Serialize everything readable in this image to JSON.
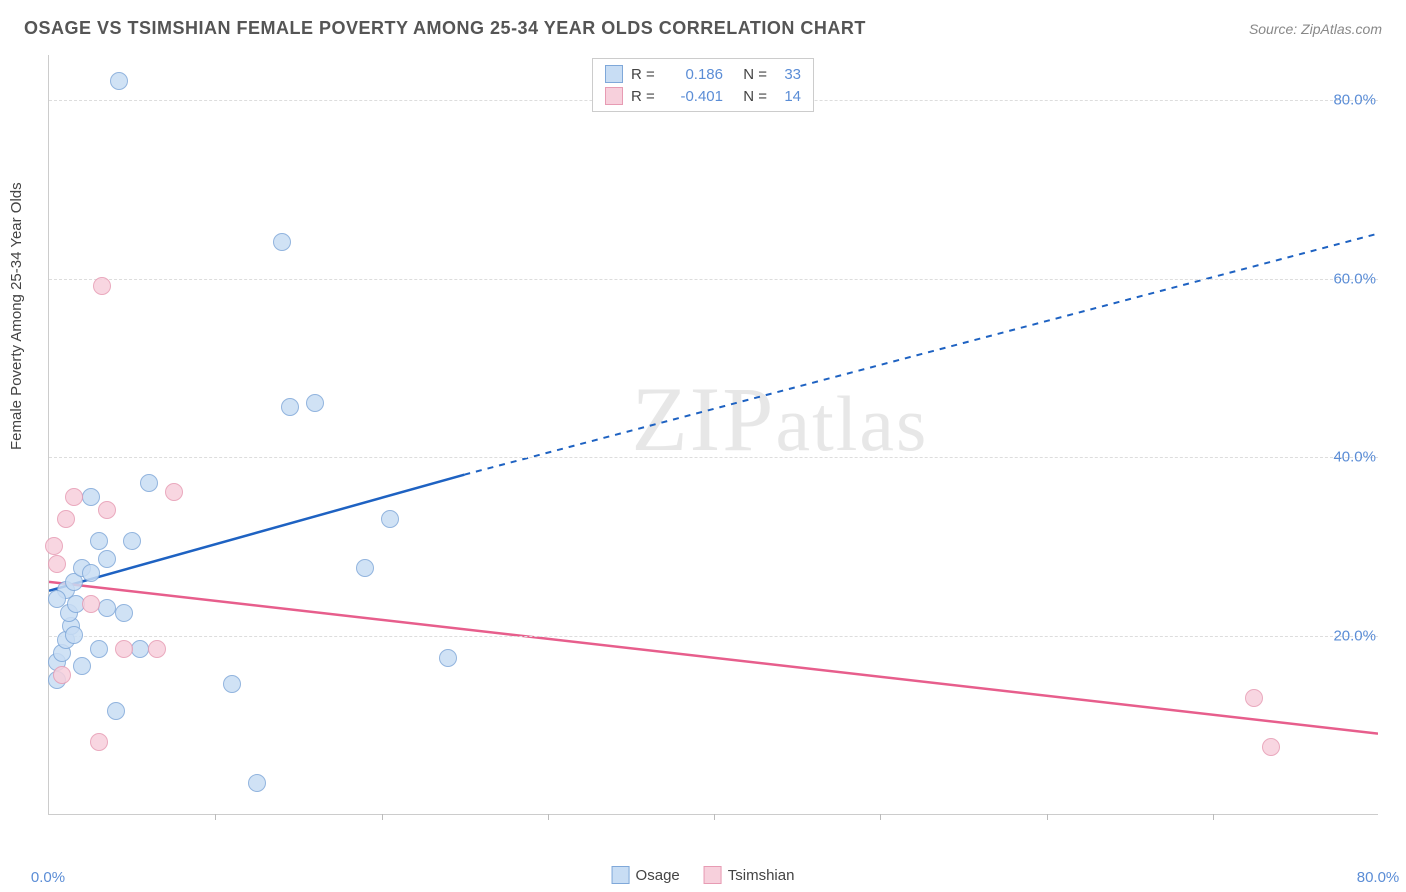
{
  "title": "OSAGE VS TSIMSHIAN FEMALE POVERTY AMONG 25-34 YEAR OLDS CORRELATION CHART",
  "source_label": "Source: ZipAtlas.com",
  "watermark": "ZIPatlas",
  "ylabel": "Female Poverty Among 25-34 Year Olds",
  "chart": {
    "type": "scatter",
    "xlim": [
      0,
      80
    ],
    "ylim": [
      0,
      85
    ],
    "x_ticks_major": [
      0,
      80
    ],
    "x_ticks_minor": [
      10,
      20,
      30,
      40,
      50,
      60,
      70
    ],
    "y_ticks_major": [
      20,
      40,
      60,
      80
    ],
    "background_color": "#ffffff",
    "grid_color": "#dddddd",
    "axis_color": "#cccccc",
    "tick_label_color": "#5b8dd6",
    "marker_radius": 9,
    "series": [
      {
        "name": "Osage",
        "fill": "#c8ddf4",
        "stroke": "#7fa8d9",
        "r_value": "0.186",
        "n_value": "33",
        "trend": {
          "color": "#1e62c2",
          "width": 2.5,
          "x1": 0,
          "y1": 25,
          "x2": 25,
          "y2": 38,
          "dash_x2": 80,
          "dash_y2": 65
        },
        "points": [
          [
            0.5,
            15
          ],
          [
            0.5,
            17
          ],
          [
            0.8,
            18
          ],
          [
            1.0,
            19.5
          ],
          [
            1.3,
            21
          ],
          [
            1.2,
            22.5
          ],
          [
            1.6,
            23.5
          ],
          [
            1.0,
            25
          ],
          [
            1.5,
            26
          ],
          [
            2.0,
            27.5
          ],
          [
            2.5,
            27
          ],
          [
            3.5,
            23
          ],
          [
            3.0,
            30.5
          ],
          [
            3.5,
            28.5
          ],
          [
            5.0,
            30.5
          ],
          [
            2.5,
            35.5
          ],
          [
            2.0,
            16.5
          ],
          [
            4.0,
            11.5
          ],
          [
            3.0,
            18.5
          ],
          [
            5.5,
            18.5
          ],
          [
            6.0,
            37
          ],
          [
            11.0,
            14.5
          ],
          [
            12.5,
            3.5
          ],
          [
            14.0,
            64
          ],
          [
            14.5,
            45.5
          ],
          [
            16.0,
            46
          ],
          [
            19.0,
            27.5
          ],
          [
            20.5,
            33
          ],
          [
            24.0,
            17.5
          ],
          [
            4.5,
            22.5
          ],
          [
            1.5,
            20
          ],
          [
            0.5,
            24
          ],
          [
            4.2,
            82
          ]
        ]
      },
      {
        "name": "Tsimshian",
        "fill": "#f7d0dc",
        "stroke": "#e79bb3",
        "r_value": "-0.401",
        "n_value": "14",
        "trend": {
          "color": "#e75e8c",
          "width": 2.5,
          "x1": 0,
          "y1": 26,
          "x2": 80,
          "y2": 9
        },
        "points": [
          [
            0.8,
            15.5
          ],
          [
            0.3,
            30
          ],
          [
            1.0,
            33
          ],
          [
            1.5,
            35.5
          ],
          [
            0.5,
            28
          ],
          [
            2.5,
            23.5
          ],
          [
            3.5,
            34
          ],
          [
            4.5,
            18.5
          ],
          [
            6.5,
            18.5
          ],
          [
            7.5,
            36
          ],
          [
            3.2,
            59
          ],
          [
            3.0,
            8
          ],
          [
            72.5,
            13
          ],
          [
            73.5,
            7.5
          ]
        ]
      }
    ]
  },
  "legend_bottom": [
    {
      "label": "Osage",
      "fill": "#c8ddf4",
      "stroke": "#7fa8d9"
    },
    {
      "label": "Tsimshian",
      "fill": "#f7d0dc",
      "stroke": "#e79bb3"
    }
  ],
  "tick_format_x": {
    "0": "0.0%",
    "80": "80.0%"
  },
  "tick_format_y": {
    "20": "20.0%",
    "40": "40.0%",
    "60": "60.0%",
    "80": "80.0%"
  }
}
